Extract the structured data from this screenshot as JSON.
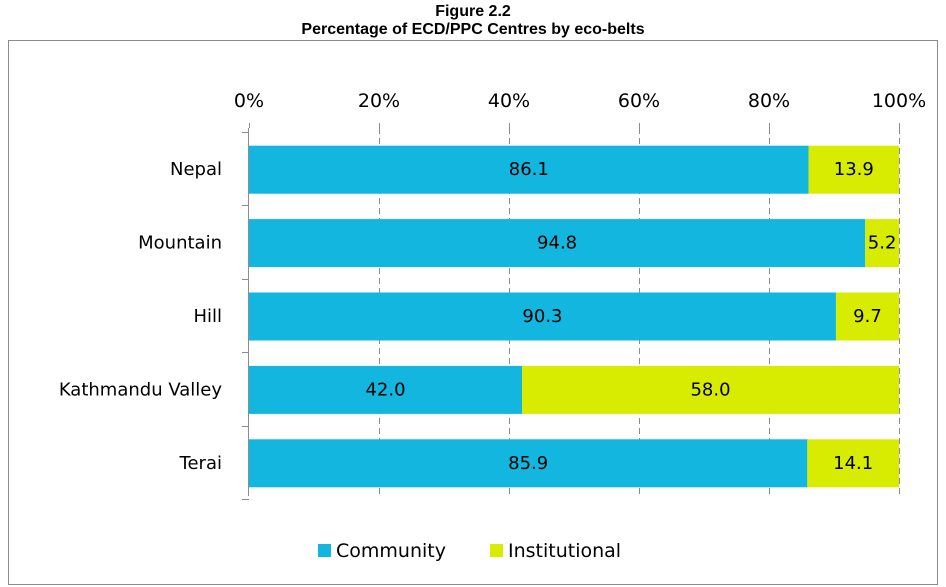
{
  "figure": {
    "number": "Figure 2.2",
    "title": "Percentage of ECD/PPC Centres by eco-belts"
  },
  "chart_data": {
    "type": "bar",
    "orientation": "horizontal",
    "stacked": true,
    "stacking": "percent",
    "title": "Percentage of ECD/PPC Centres by eco-belts",
    "categories": [
      "Nepal",
      "Mountain",
      "Hill",
      "Kathmandu Valley",
      "Terai"
    ],
    "series": [
      {
        "name": "Community",
        "color": "#12b6de",
        "values": [
          86.1,
          94.8,
          90.3,
          42.0,
          85.9
        ],
        "labels": [
          "86.1",
          "94.8",
          "90.3",
          "42.0",
          "85.9"
        ]
      },
      {
        "name": "Institutional",
        "color": "#d7ec00",
        "values": [
          13.9,
          5.2,
          9.7,
          58.0,
          14.1
        ],
        "labels": [
          "13.9",
          "5.2",
          "9.7",
          "58.0",
          "14.1"
        ]
      }
    ],
    "xlim": [
      0,
      100
    ],
    "xticks": [
      0,
      20,
      40,
      60,
      80,
      100
    ],
    "xtick_labels": [
      "0%",
      "20%",
      "40%",
      "60%",
      "80%",
      "100%"
    ],
    "x_axis_position": "top",
    "grid": "vertical dashed",
    "legend": "bottom"
  }
}
